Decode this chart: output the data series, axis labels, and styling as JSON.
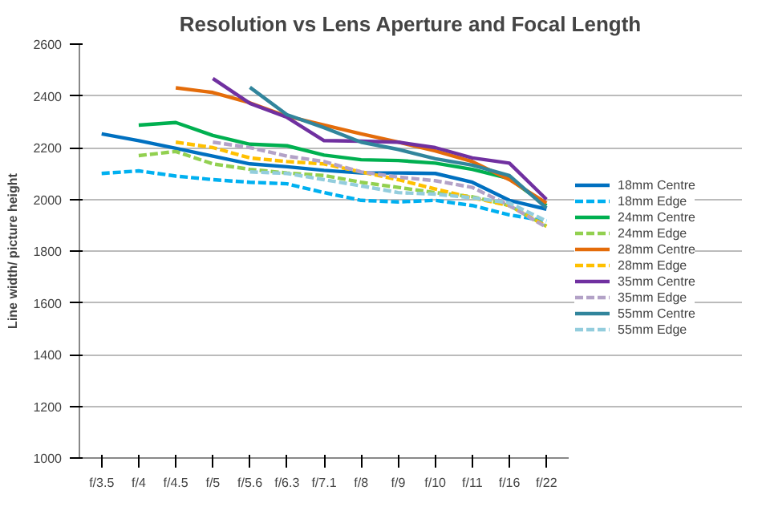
{
  "chart_data": {
    "type": "line",
    "title": "Resolution vs Lens Aperture and Focal Length",
    "ylabel": "Line width/ picture height",
    "categories": [
      "f/3.5",
      "f/4",
      "f/4.5",
      "f/5",
      "f/5.6",
      "f/6.3",
      "f/7.1",
      "f/8",
      "f/9",
      "f/10",
      "f/11",
      "f/16",
      "f/22"
    ],
    "ylim": [
      1000,
      2600
    ],
    "yticks": [
      1000,
      1200,
      1400,
      1600,
      1800,
      2000,
      2200,
      2400,
      2600
    ],
    "grid": "y",
    "legend": "right",
    "marker": "none",
    "series": [
      {
        "name": "18mm Centre",
        "color": "#0070c0",
        "line_style": "solid",
        "values": [
          2253,
          2227,
          2197,
          2167,
          2137,
          2126,
          2112,
          2102,
          2102,
          2100,
          2066,
          1996,
          1962
        ]
      },
      {
        "name": "18mm Edge",
        "color": "#00b0f0",
        "line_style": "dashed",
        "values": [
          2100,
          2110,
          2090,
          2076,
          2066,
          2060,
          2026,
          1996,
          1990,
          1996,
          1976,
          1940,
          1916
        ]
      },
      {
        "name": "24mm Centre",
        "color": "#00b050",
        "line_style": "solid",
        "values": [
          null,
          2287,
          2297,
          2247,
          2213,
          2207,
          2171,
          2153,
          2150,
          2140,
          2116,
          2080,
          1976
        ]
      },
      {
        "name": "24mm Edge",
        "color": "#92d050",
        "line_style": "dashed",
        "values": [
          null,
          2169,
          2185,
          2137,
          2116,
          2102,
          2092,
          2066,
          2046,
          2026,
          2010,
          1976,
          1896
        ]
      },
      {
        "name": "28mm Centre",
        "color": "#e46c0a",
        "line_style": "solid",
        "values": [
          null,
          null,
          2431,
          2413,
          2373,
          2321,
          2287,
          2253,
          2221,
          2187,
          2146,
          2076,
          1986
        ]
      },
      {
        "name": "28mm Edge",
        "color": "#ffc000",
        "line_style": "dashed",
        "values": [
          null,
          null,
          2221,
          2200,
          2160,
          2146,
          2137,
          2106,
          2076,
          2040,
          2006,
          1976,
          1896
        ]
      },
      {
        "name": "35mm Centre",
        "color": "#7030a0",
        "line_style": "solid",
        "values": [
          null,
          null,
          null,
          2467,
          2371,
          2317,
          2227,
          2225,
          2221,
          2200,
          2160,
          2140,
          2000
        ]
      },
      {
        "name": "35mm Edge",
        "color": "#b3a2c7",
        "line_style": "dashed",
        "values": [
          null,
          null,
          null,
          2221,
          2200,
          2167,
          2146,
          2106,
          2086,
          2072,
          2046,
          1976,
          1892
        ]
      },
      {
        "name": "55mm Centre",
        "color": "#31859c",
        "line_style": "solid",
        "values": [
          null,
          null,
          null,
          null,
          2433,
          2327,
          2277,
          2221,
          2193,
          2157,
          2132,
          2092,
          1966
        ]
      },
      {
        "name": "55mm Edge",
        "color": "#93cddd",
        "line_style": "dashed",
        "values": [
          null,
          null,
          null,
          null,
          2106,
          2100,
          2076,
          2052,
          2026,
          2020,
          2006,
          1986,
          1916
        ]
      }
    ]
  }
}
